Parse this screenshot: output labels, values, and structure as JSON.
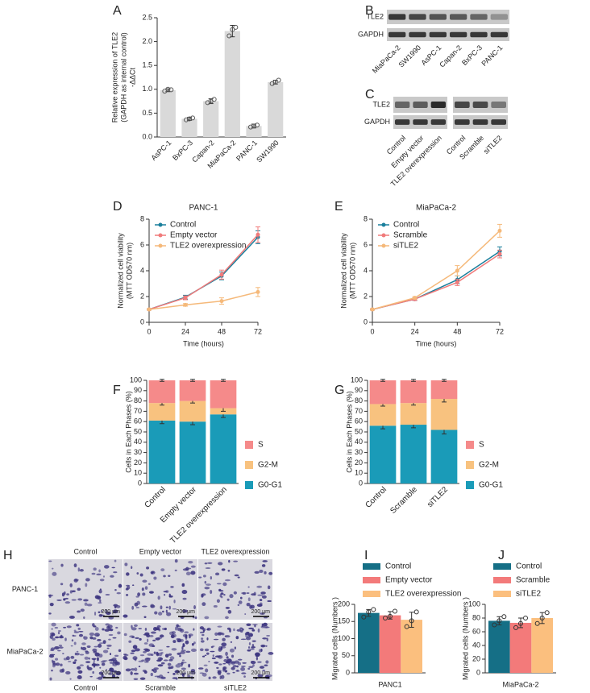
{
  "chart_data": [
    {
      "type": "bar",
      "label": "A",
      "ylabel": [
        "Relative expression of TLE2",
        "(GAPDH as internal control)",
        "-ΔΔCt"
      ],
      "categories": [
        "AsPC-1",
        "BxPC-3",
        "Capan-2",
        "MiaPaCa-2",
        "PANC-1",
        "SW1990"
      ],
      "values": [
        0.98,
        0.38,
        0.75,
        2.22,
        0.23,
        1.15
      ],
      "errors": [
        0.03,
        0.03,
        0.05,
        0.12,
        0.04,
        0.04
      ],
      "points": [
        [
          0.96,
          1.0,
          0.99
        ],
        [
          0.36,
          0.38,
          0.4
        ],
        [
          0.72,
          0.75,
          0.79
        ],
        [
          2.12,
          2.25,
          2.3
        ],
        [
          0.21,
          0.23,
          0.25
        ],
        [
          1.12,
          1.15,
          1.19
        ]
      ],
      "color": "#d9d9d9",
      "ylim": [
        0,
        2.5
      ],
      "yticks": [
        {
          "value": 0,
          "label": "0.0"
        },
        0.5,
        {
          "value": 1,
          "label": "1.0"
        },
        1.5,
        {
          "value": 2,
          "label": "2.0"
        },
        2.5
      ]
    },
    {
      "type": "line",
      "label": "D",
      "title": "PANC-1",
      "xlabel": "Time (hours)",
      "ylabel": [
        "Normalized cell viability",
        "(MTT OD570 nm)"
      ],
      "x": [
        0,
        24,
        48,
        72
      ],
      "xlim": [
        0,
        72
      ],
      "xticks": [
        0,
        24,
        48,
        72
      ],
      "ylim": [
        0,
        8
      ],
      "yticks": [
        0,
        2,
        4,
        6,
        8
      ],
      "series": [
        {
          "name": "Control",
          "color": "#1a7f9c",
          "values": [
            1,
            1.95,
            3.6,
            6.6
          ],
          "errors": [
            0.05,
            0.15,
            0.3,
            0.5
          ]
        },
        {
          "name": "Empty vector",
          "color": "#f07b7b",
          "values": [
            1,
            1.9,
            3.7,
            6.8
          ],
          "errors": [
            0.05,
            0.15,
            0.35,
            0.6
          ]
        },
        {
          "name": "TLE2 overexpression",
          "color": "#f5b97a",
          "values": [
            1,
            1.35,
            1.65,
            2.35
          ],
          "errors": [
            0.05,
            0.1,
            0.25,
            0.35
          ]
        }
      ]
    },
    {
      "type": "line",
      "label": "E",
      "title": "MiaPaCa-2",
      "xlabel": "Time (hours)",
      "ylabel": [
        "Normalized cell viability",
        "(MTT OD570 nm)"
      ],
      "x": [
        0,
        24,
        48,
        72
      ],
      "xlim": [
        0,
        72
      ],
      "xticks": [
        0,
        24,
        48,
        72
      ],
      "ylim": [
        0,
        8
      ],
      "yticks": [
        0,
        2,
        4,
        6,
        8
      ],
      "series": [
        {
          "name": "Control",
          "color": "#1a7f9c",
          "values": [
            1,
            1.8,
            3.3,
            5.5
          ],
          "errors": [
            0.05,
            0.1,
            0.3,
            0.35
          ]
        },
        {
          "name": "Scramble",
          "color": "#f07b7b",
          "values": [
            1,
            1.8,
            3.1,
            5.3
          ],
          "errors": [
            0.05,
            0.1,
            0.25,
            0.3
          ]
        },
        {
          "name": "siTLE2",
          "color": "#f5b97a",
          "values": [
            1,
            1.9,
            4.0,
            7.1
          ],
          "errors": [
            0.05,
            0.1,
            0.4,
            0.5
          ]
        }
      ]
    },
    {
      "type": "stacked_bar",
      "label": "F",
      "ylabel": [
        "Cells in Each Phases (%)"
      ],
      "categories": [
        "Control",
        "Empty vector",
        "TLE2 overexpression"
      ],
      "ylim": [
        0,
        100
      ],
      "yticks": [
        0,
        10,
        20,
        30,
        40,
        50,
        60,
        70,
        80,
        90,
        100
      ],
      "series": [
        {
          "name": "G0-G1",
          "color": "#1a9bb8",
          "values": [
            61,
            60,
            67
          ],
          "errors": [
            3,
            3,
            3
          ]
        },
        {
          "name": "G2-M",
          "color": "#f8c27f",
          "values": [
            17,
            20,
            6
          ],
          "errors": [
            2,
            2,
            3
          ]
        },
        {
          "name": "S",
          "color": "#f58a8a",
          "values": [
            22,
            20,
            27
          ],
          "errors": [
            1,
            1,
            1
          ]
        }
      ]
    },
    {
      "type": "stacked_bar",
      "label": "G",
      "ylabel": [
        "Cells in Each Phases (%)"
      ],
      "categories": [
        "Control",
        "Scramble",
        "siTLE2"
      ],
      "ylim": [
        0,
        100
      ],
      "yticks": [
        0,
        10,
        20,
        30,
        40,
        50,
        60,
        70,
        80,
        90,
        100
      ],
      "series": [
        {
          "name": "G0-G1",
          "color": "#1a9bb8",
          "values": [
            56,
            57,
            52
          ],
          "errors": [
            3,
            3,
            4
          ]
        },
        {
          "name": "G2-M",
          "color": "#f8c27f",
          "values": [
            21,
            21,
            30
          ],
          "errors": [
            2,
            2,
            3
          ]
        },
        {
          "name": "S",
          "color": "#f58a8a",
          "values": [
            23,
            22,
            18
          ],
          "errors": [
            1,
            1,
            1
          ]
        }
      ]
    },
    {
      "type": "grouped_bar",
      "label": "I",
      "ylabel": [
        "Migrated cells (Numbers )"
      ],
      "categories": [
        "PANC1"
      ],
      "ylim": [
        0,
        200
      ],
      "yticks": [
        0,
        50,
        100,
        150,
        200
      ],
      "series": [
        {
          "name": "Control",
          "color": "#156f86",
          "values": [
            175
          ],
          "errors": [
            10
          ],
          "points": [
            [
              163,
              178,
              185
            ]
          ]
        },
        {
          "name": "Empty vector",
          "color": "#f37a7a",
          "values": [
            168
          ],
          "errors": [
            11
          ],
          "points": [
            [
              160,
              165,
              180
            ]
          ]
        },
        {
          "name": "TLE2 overexpression",
          "color": "#fbbf7e",
          "values": [
            155
          ],
          "errors": [
            22
          ],
          "points": [
            [
              135,
              152,
              178
            ]
          ]
        }
      ]
    },
    {
      "type": "grouped_bar",
      "label": "J",
      "ylabel": [
        "Migrated cells (Numbers )"
      ],
      "categories": [
        "MiaPaCa-2"
      ],
      "ylim": [
        0,
        100
      ],
      "yticks": [
        0,
        20,
        40,
        60,
        80,
        100
      ],
      "series": [
        {
          "name": "Control",
          "color": "#156f86",
          "values": [
            76
          ],
          "errors": [
            6
          ],
          "points": [
            [
              70,
              76,
              82
            ]
          ]
        },
        {
          "name": "Scramble",
          "color": "#f37a7a",
          "values": [
            73
          ],
          "errors": [
            7
          ],
          "points": [
            [
              66,
              72,
              80
            ]
          ]
        },
        {
          "name": "siTLE2",
          "color": "#fbbf7e",
          "values": [
            80
          ],
          "errors": [
            8
          ],
          "points": [
            [
              72,
              80,
              88
            ]
          ]
        }
      ]
    }
  ],
  "panel_b": {
    "label": "B",
    "rows": [
      "TLE2",
      "GAPDH"
    ],
    "lanes": [
      "MiaPaCa-2",
      "SW1990",
      "AsPC-1",
      "Capan-2",
      "BxPC-3",
      "PANC-1"
    ]
  },
  "panel_c": {
    "label": "C",
    "rows": [
      "TLE2",
      "GAPDH"
    ],
    "lanes": [
      "Control",
      "Empty vector",
      "TLE2 overexpression",
      "Control",
      "Scramble",
      "siTLE2"
    ]
  },
  "panel_h": {
    "label": "H",
    "top_labels": [
      "Control",
      "Empty vector",
      "TLE2 overexpression"
    ],
    "row_labels": [
      "PANC-1",
      "MiaPaCa-2"
    ],
    "bottom_labels": [
      "Control",
      "Scramble",
      "siTLE2"
    ],
    "scale_bar": "200 μm"
  }
}
